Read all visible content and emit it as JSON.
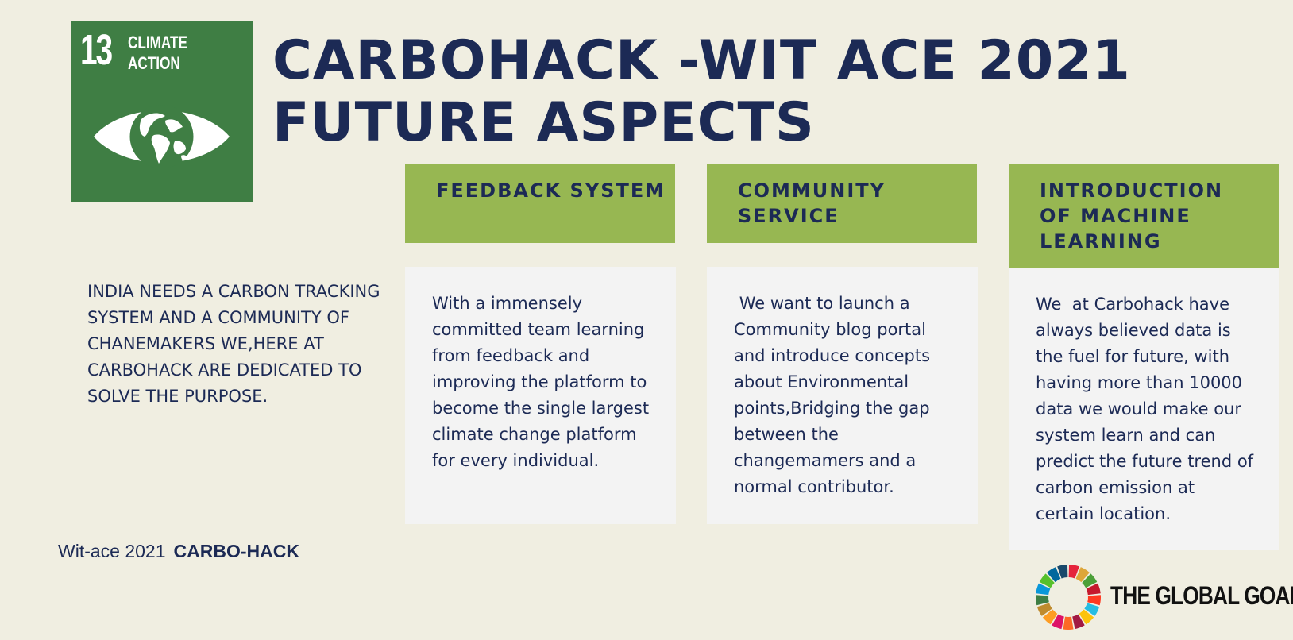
{
  "sdg_badge": {
    "number": "13",
    "label_line1": "CLIMATE",
    "label_line2": "ACTION",
    "color": "#3f7e44",
    "icon": "eye-globe-icon"
  },
  "title": {
    "line1": "CARBOHACK -WIT ACE 2021",
    "line2": "FUTURE ASPECTS"
  },
  "intro": "INDIA NEEDS A CARBON TRACKING SYSTEM AND A COMMUNITY OF CHANEMAKERS WE,HERE AT CARBOHACK ARE DEDICATED TO SOLVE THE PURPOSE.",
  "columns": [
    {
      "header": "FEEDBACK SYSTEM",
      "body": "With a immensely committed team learning from feedback and improving the platform to become the single largest climate change platform for every individual."
    },
    {
      "header": "COMMUNITY SERVICE",
      "body": " We want to launch a Community blog portal and introduce concepts about Environmental points,Bridging the gap between the changemamers and a normal contributor."
    },
    {
      "header": "INTRODUCTION OF MACHINE LEARNING",
      "body": "We  at Carbohack have always believed data is the fuel for future, with having more than 10000 data we would make our system learn and can predict the future trend of carbon emission at certain location."
    }
  ],
  "footer": {
    "event": "Wit-ace 2021",
    "brand": "CARBO-HACK"
  },
  "global_goals": {
    "text": "THE GLOBAL GOALS",
    "icon": "sdg-color-wheel-icon"
  },
  "colors": {
    "navy": "#1c2a55",
    "header_green": "#97b752",
    "badge_green": "#3f7e44",
    "background": "#f0eee1",
    "card": "#f3f3f3"
  }
}
